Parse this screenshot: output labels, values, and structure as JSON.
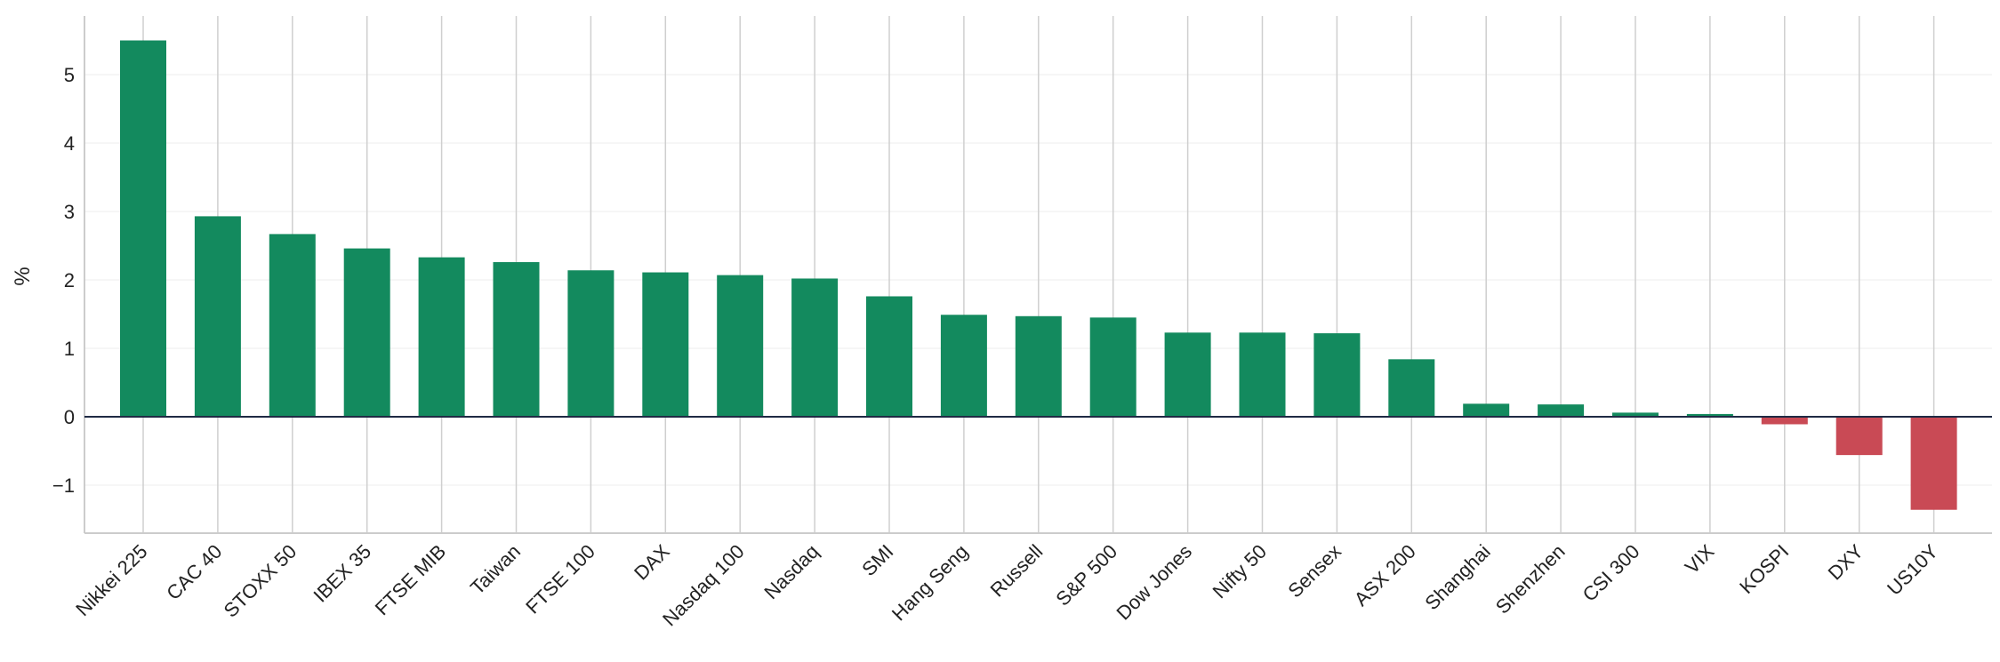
{
  "chart_data": {
    "type": "bar",
    "title": "",
    "xlabel": "",
    "ylabel": "%",
    "ylim": [
      -1.7,
      5.9
    ],
    "yticks": [
      -1,
      0,
      1,
      2,
      3,
      4,
      5
    ],
    "ytick_labels": [
      "−1",
      "0",
      "1",
      "2",
      "3",
      "4",
      "5"
    ],
    "categories": [
      "Nikkei 225",
      "CAC 40",
      "STOXX 50",
      "IBEX 35",
      "FTSE MIB",
      "Taiwan",
      "FTSE 100",
      "DAX",
      "Nasdaq 100",
      "Nasdaq",
      "SMI",
      "Hang Seng",
      "Russell",
      "S&P 500",
      "Dow Jones",
      "Nifty 50",
      "Sensex",
      "ASX 200",
      "Shanghai",
      "Shenzhen",
      "CSI 300",
      "VIX",
      "KOSPI",
      "DXY",
      "US10Y"
    ],
    "values": [
      5.5,
      2.93,
      2.67,
      2.46,
      2.33,
      2.26,
      2.14,
      2.11,
      2.07,
      2.02,
      1.76,
      1.49,
      1.47,
      1.45,
      1.23,
      1.23,
      1.22,
      0.84,
      0.19,
      0.18,
      0.06,
      0.04,
      -0.11,
      -0.56,
      -1.36
    ],
    "grid": true,
    "colors": {
      "positive": "#138a5e",
      "negative": "#c94a55",
      "zero_line": "#1f2a44",
      "vertical_grid": "#cfcfcf",
      "horizontal_grid": "#eeeeee",
      "axis": "#cccccc"
    }
  }
}
